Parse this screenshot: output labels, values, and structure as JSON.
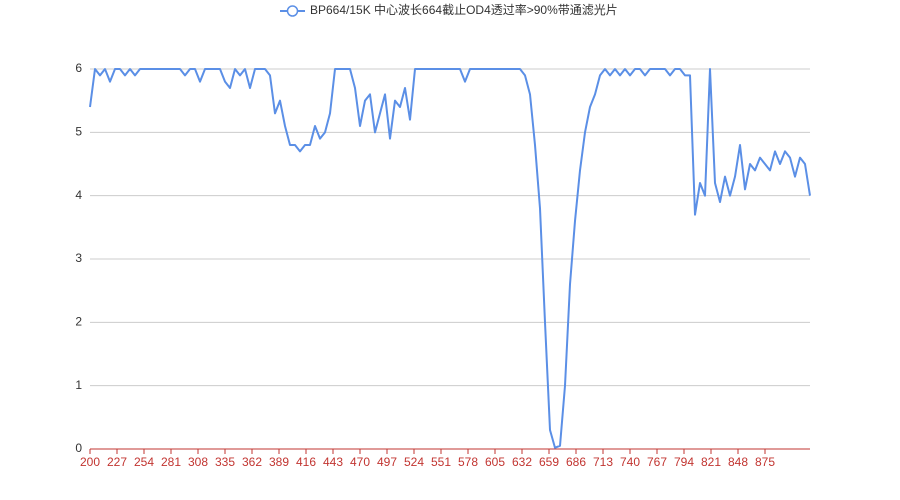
{
  "chart_data": {
    "type": "line",
    "series": [
      {
        "name": "BP664/15K 中心波长664截止OD4透过率>90%带通滤光片",
        "color": "#5b8fe6",
        "values": [
          5.4,
          6,
          5.9,
          6,
          5.8,
          6,
          6,
          5.9,
          6,
          5.9,
          6,
          6,
          6,
          6,
          6,
          6,
          6,
          6,
          6,
          5.9,
          6,
          6,
          5.8,
          6,
          6,
          6,
          6,
          5.8,
          5.7,
          6,
          5.9,
          6,
          5.7,
          6,
          6,
          6,
          5.9,
          5.3,
          5.5,
          5.1,
          4.8,
          4.8,
          4.7,
          4.8,
          4.8,
          5.1,
          4.9,
          5.0,
          5.3,
          6,
          6,
          6,
          6,
          5.7,
          5.1,
          5.5,
          5.6,
          5.0,
          5.3,
          5.6,
          4.9,
          5.5,
          5.4,
          5.7,
          5.2,
          6,
          6,
          6,
          6,
          6,
          6,
          6,
          6,
          6,
          6,
          5.8,
          6,
          6,
          6,
          6,
          6,
          6,
          6,
          6,
          6,
          6,
          6,
          5.9,
          5.6,
          4.8,
          3.8,
          2.0,
          0.3,
          0.02,
          0.05,
          1.0,
          2.6,
          3.6,
          4.4,
          5.0,
          5.4,
          5.6,
          5.9,
          6,
          5.9,
          6,
          5.9,
          6,
          5.9,
          6,
          6,
          5.9,
          6,
          6,
          6,
          6,
          5.9,
          6,
          6,
          5.9,
          5.9,
          3.7,
          4.2,
          4.0,
          6,
          4.2,
          3.9,
          4.3,
          4.0,
          4.3,
          4.8,
          4.1,
          4.5,
          4.4,
          4.6,
          4.5,
          4.4,
          4.7,
          4.5,
          4.7,
          4.6,
          4.3,
          4.6,
          4.5,
          4.0
        ]
      }
    ],
    "x": [
      200,
      205,
      210,
      215,
      220,
      225,
      230,
      235,
      240,
      245,
      250,
      255,
      260,
      265,
      270,
      275,
      280,
      285,
      290,
      295,
      300,
      305,
      310,
      315,
      320,
      325,
      330,
      335,
      340,
      345,
      350,
      355,
      360,
      365,
      370,
      375,
      380,
      385,
      390,
      395,
      400,
      405,
      410,
      415,
      420,
      425,
      430,
      435,
      440,
      445,
      450,
      455,
      460,
      465,
      470,
      475,
      480,
      485,
      490,
      495,
      500,
      505,
      510,
      515,
      520,
      525,
      530,
      535,
      540,
      545,
      550,
      555,
      560,
      565,
      570,
      575,
      580,
      585,
      590,
      595,
      600,
      605,
      610,
      615,
      620,
      625,
      630,
      635,
      640,
      645,
      650,
      655,
      660,
      665,
      670,
      675,
      680,
      685,
      690,
      695,
      700,
      705,
      710,
      715,
      720,
      725,
      730,
      735,
      740,
      745,
      750,
      755,
      760,
      765,
      770,
      775,
      780,
      785,
      790,
      795,
      800,
      805,
      810,
      815,
      820,
      825,
      830,
      835,
      840,
      845,
      850,
      855,
      860,
      865,
      870,
      875,
      880,
      885,
      890,
      895,
      900,
      905,
      910,
      915,
      920
    ],
    "xlim": [
      200,
      920
    ],
    "xticks": [
      200,
      227,
      254,
      281,
      308,
      335,
      362,
      389,
      416,
      443,
      470,
      497,
      524,
      551,
      578,
      605,
      632,
      659,
      686,
      713,
      740,
      767,
      794,
      821,
      848,
      875
    ],
    "ylim": [
      0,
      6
    ],
    "yticks": [
      0,
      1,
      2,
      3,
      4,
      5,
      6
    ],
    "grid": true,
    "legend": "top",
    "axis_color": "#c23531"
  }
}
